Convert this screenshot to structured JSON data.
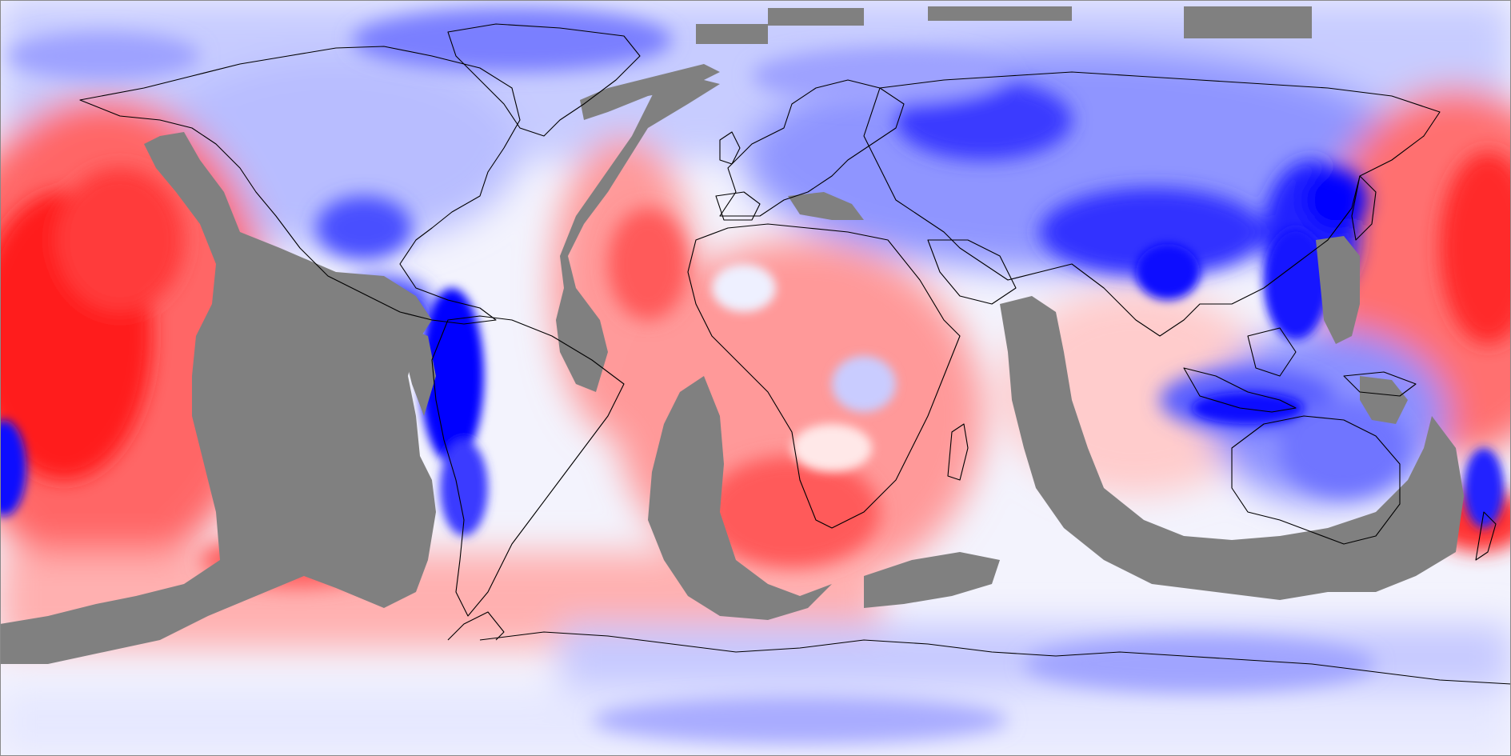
{
  "map": {
    "projection": "equirectangular",
    "colors": {
      "positive_strong": "#ff0000",
      "positive_mid": "#ff8080",
      "positive_light": "#ffd8d8",
      "neutral": "#f4f5ff",
      "negative_light": "#d6d9ff",
      "negative_mid": "#7a80ff",
      "negative_strong": "#0000ff",
      "masked": "#808080",
      "coastline": "#000000"
    }
  }
}
